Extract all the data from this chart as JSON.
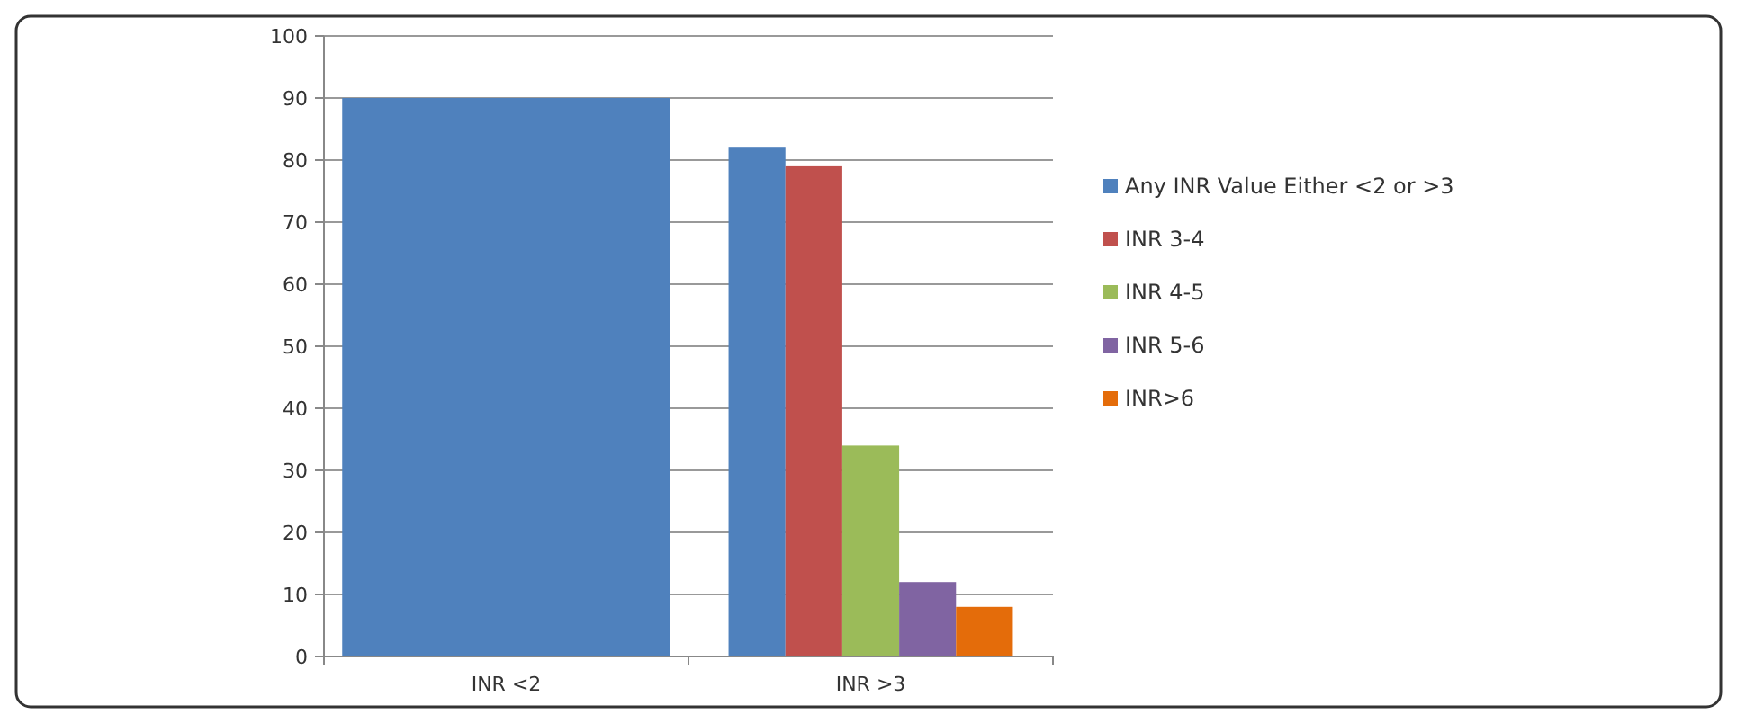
{
  "chart_data": {
    "type": "bar",
    "categories": [
      "INR <2",
      "INR >3"
    ],
    "series": [
      {
        "name": "Any INR Value Either <2 or >3",
        "color": "#4f81bd",
        "values": [
          90,
          82
        ]
      },
      {
        "name": "INR 3-4",
        "color": "#c0504d",
        "values": [
          null,
          79
        ]
      },
      {
        "name": "INR 4-5",
        "color": "#9bbb59",
        "values": [
          null,
          34
        ]
      },
      {
        "name": "INR 5-6",
        "color": "#8064a2",
        "values": [
          null,
          12
        ]
      },
      {
        "name": "INR>6",
        "color": "#e46c0a",
        "values": [
          null,
          8
        ]
      }
    ],
    "ylim": [
      0,
      100
    ],
    "yticks": [
      0,
      10,
      20,
      30,
      40,
      50,
      60,
      70,
      80,
      90,
      100
    ],
    "grid": "y",
    "legend": "right"
  }
}
